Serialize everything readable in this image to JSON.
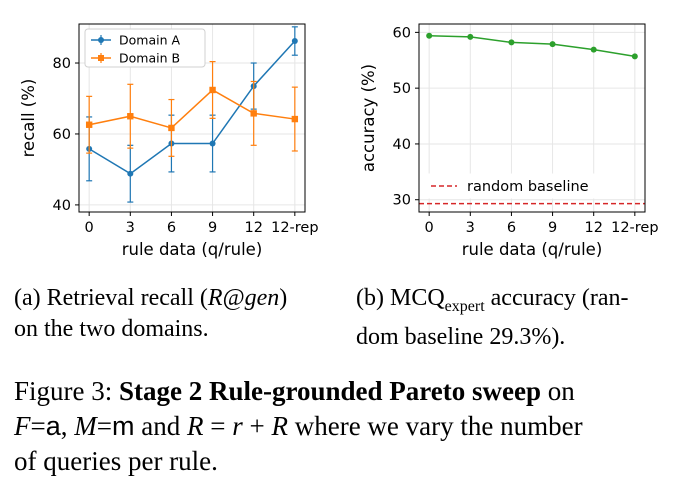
{
  "chart_data": [
    {
      "type": "line",
      "categories": [
        "0",
        "3",
        "6",
        "9",
        "12",
        "12-rep"
      ],
      "xlabel": "rule data (q/rule)",
      "ylabel": "recall (%)",
      "yticks": [
        40,
        60,
        80
      ],
      "ylim": [
        38,
        91
      ],
      "grid": true,
      "legend": "top-left",
      "series": [
        {
          "name": "Domain A",
          "color": "#1f77b4",
          "marker": "circle",
          "values": [
            55.8,
            48.8,
            57.3,
            57.3,
            73.5,
            86.2
          ],
          "err": [
            9.0,
            8.0,
            8.0,
            8.0,
            6.5,
            4.0
          ]
        },
        {
          "name": "Domain B",
          "color": "#ff7f0e",
          "marker": "square",
          "values": [
            62.6,
            65.0,
            61.7,
            72.4,
            65.8,
            64.2
          ],
          "err": [
            8.0,
            9.0,
            8.0,
            8.0,
            9.0,
            9.0
          ]
        }
      ]
    },
    {
      "type": "line",
      "categories": [
        "0",
        "3",
        "6",
        "9",
        "12",
        "12-rep"
      ],
      "xlabel": "rule data (q/rule)",
      "ylabel": "accuracy (%)",
      "yticks": [
        30,
        40,
        50,
        60
      ],
      "ylim": [
        27.8,
        61.5
      ],
      "grid": true,
      "legend": "bottom-left",
      "series": [
        {
          "name": "",
          "color": "#2ca02c",
          "marker": "circle",
          "values": [
            59.4,
            59.2,
            58.2,
            57.9,
            56.9,
            55.7
          ]
        }
      ],
      "baseline": {
        "label": "random baseline",
        "value": 29.3,
        "color": "#d62728"
      }
    }
  ],
  "captions": {
    "a_prefix": "(a) Retrieval recall (",
    "a_math": "R@gen",
    "a_suffix": ")",
    "a_line2": "on the two domains.",
    "b_prefix": "(b) MCQ",
    "b_sub": "expert",
    "b_suffix": " accuracy (ran-",
    "b_line2_a": "dom baseline ",
    "b_line2_math": "29.3%",
    "b_line2_b": ").",
    "fig_label": "Figure 3: ",
    "fig_bold": "Stage 2 Rule-grounded Pareto sweep",
    "fig_on": " on",
    "fig_l2": {
      "F": "F",
      "eq1": "=",
      "a": "a",
      "comma": ", ",
      "M": "M",
      "eq2": "=",
      "m": "m",
      "and": " and ",
      "R": "R",
      "eq3": " = ",
      "r": "r",
      "plus": " + ",
      "R2": "R",
      "rest": " where we vary the number"
    },
    "fig_l3": "of queries per rule."
  }
}
